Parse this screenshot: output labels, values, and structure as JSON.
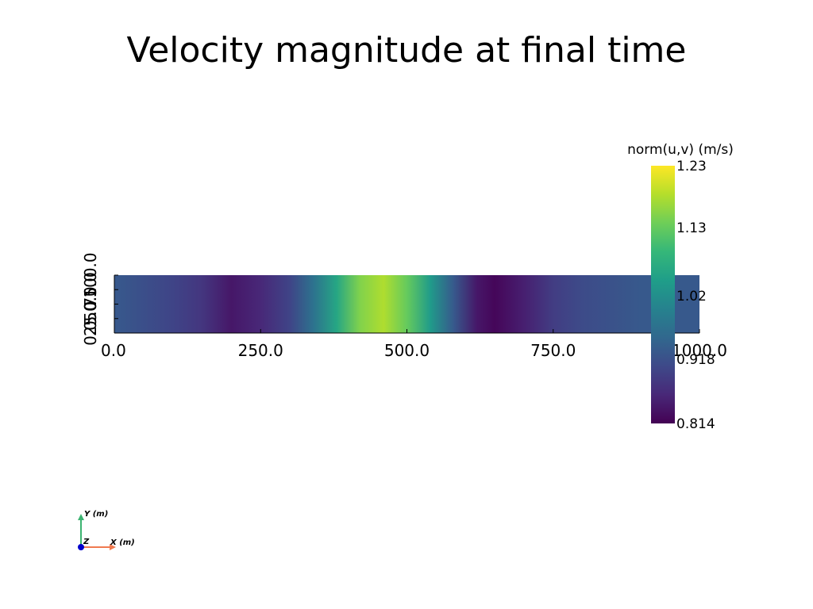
{
  "title": "Velocity magnitude at final time",
  "colors": {
    "viridis": [
      "#440154",
      "#482878",
      "#3e4989",
      "#31688e",
      "#26828e",
      "#1f9e89",
      "#35b779",
      "#6ece58",
      "#b5de2b",
      "#fde725"
    ],
    "axis": "#000000",
    "orientation_x": "#f07a50",
    "orientation_y": "#3cb371",
    "orientation_z": "#0000cc"
  },
  "chart_data": {
    "type": "heatmap",
    "title": "Velocity magnitude at final time",
    "xlim": [
      0,
      1000
    ],
    "ylim": [
      0,
      100
    ],
    "x_ticks": [
      "0.0",
      "250.0",
      "500.0",
      "750.0",
      "1000.0"
    ],
    "y_ticks": [
      "0.0",
      "25.0",
      "50.0",
      "75.0",
      "100.0"
    ],
    "colorbar": {
      "title": "norm(u,v) (m/s)",
      "range": [
        0.814,
        1.23
      ],
      "ticks": [
        "1.23",
        "1.13",
        "1.02",
        "0.918",
        "0.814"
      ],
      "colormap": "viridis"
    },
    "profile": {
      "x": [
        0,
        100,
        150,
        200,
        250,
        300,
        340,
        380,
        420,
        460,
        500,
        540,
        580,
        620,
        650,
        700,
        750,
        800,
        850,
        900,
        950,
        1000
      ],
      "value": [
        0.93,
        0.9,
        0.88,
        0.84,
        0.86,
        0.9,
        0.97,
        1.06,
        1.15,
        1.18,
        1.13,
        1.04,
        0.93,
        0.84,
        0.82,
        0.85,
        0.89,
        0.91,
        0.92,
        0.93,
        0.93,
        0.93
      ]
    }
  },
  "orientation": {
    "x_label": "X (m)",
    "y_label": "Y (m)",
    "z_label": "Z"
  }
}
